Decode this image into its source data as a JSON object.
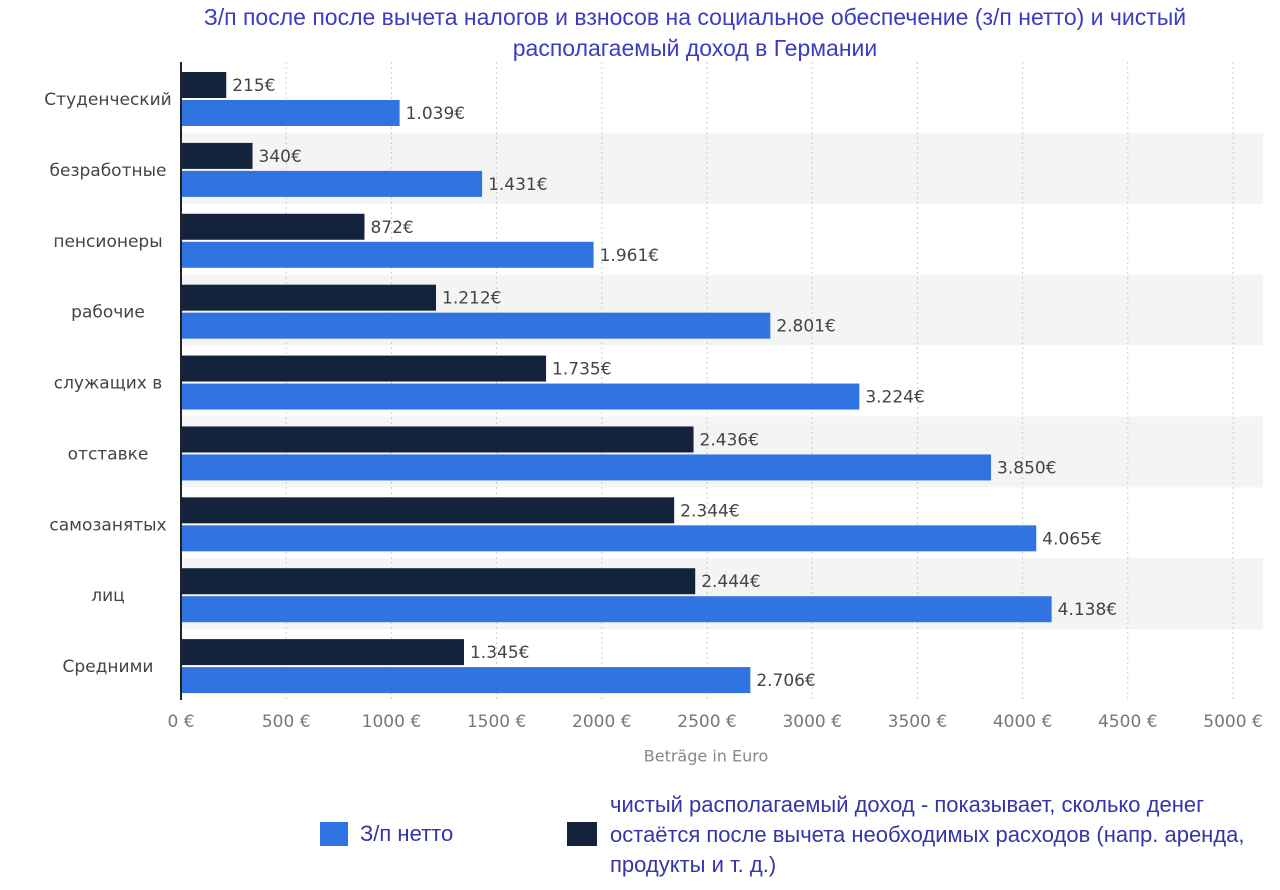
{
  "chart_data": {
    "type": "hbar",
    "title": "З/п после после вычета налогов и взносов на социальное обеспечение (з/п нетто) и чистый располагаемый доход в Германии",
    "categories": [
      "Студенческий",
      "безработные",
      "пенсионеры",
      "рабочие",
      "служащих в",
      "отставке",
      "самозанятых",
      "лиц",
      "Средними"
    ],
    "series": [
      {
        "name": "чистый располагаемый доход - показывает, сколько денег остаётся после вычета необходимых расходов (напр. аренда, продукты и т. д.)",
        "color": "#13233b",
        "values": [
          215,
          340,
          872,
          1212,
          1735,
          2436,
          2344,
          2444,
          1345
        ],
        "value_labels": [
          "215€",
          "340€",
          "872€",
          "1.212€",
          "1.735€",
          "2.436€",
          "2.344€",
          "2.444€",
          "1.345€"
        ]
      },
      {
        "name": "З/п нетто",
        "color": "#2f74e0",
        "values": [
          1039,
          1431,
          1961,
          2801,
          3224,
          3850,
          4065,
          4138,
          2706
        ],
        "value_labels": [
          "1.039€",
          "1.431€",
          "1.961€",
          "2.801€",
          "3.224€",
          "3.850€",
          "4.065€",
          "4.138€",
          "2.706€"
        ]
      }
    ],
    "x_label": "Beträge in Euro",
    "xlim": [
      0,
      5000
    ],
    "xticks": [
      {
        "value": 0,
        "label": "0 €"
      },
      {
        "value": 500,
        "label": "500 €"
      },
      {
        "value": 1000,
        "label": "1000 €"
      },
      {
        "value": 1500,
        "label": "1500 €"
      },
      {
        "value": 2000,
        "label": "2000 €"
      },
      {
        "value": 2500,
        "label": "2500 €"
      },
      {
        "value": 3000,
        "label": "3000 €"
      },
      {
        "value": 3500,
        "label": "3500 €"
      },
      {
        "value": 4000,
        "label": "4000 €"
      },
      {
        "value": 4500,
        "label": "4500 €"
      },
      {
        "value": 5000,
        "label": "5000 €"
      }
    ],
    "grid": true
  }
}
